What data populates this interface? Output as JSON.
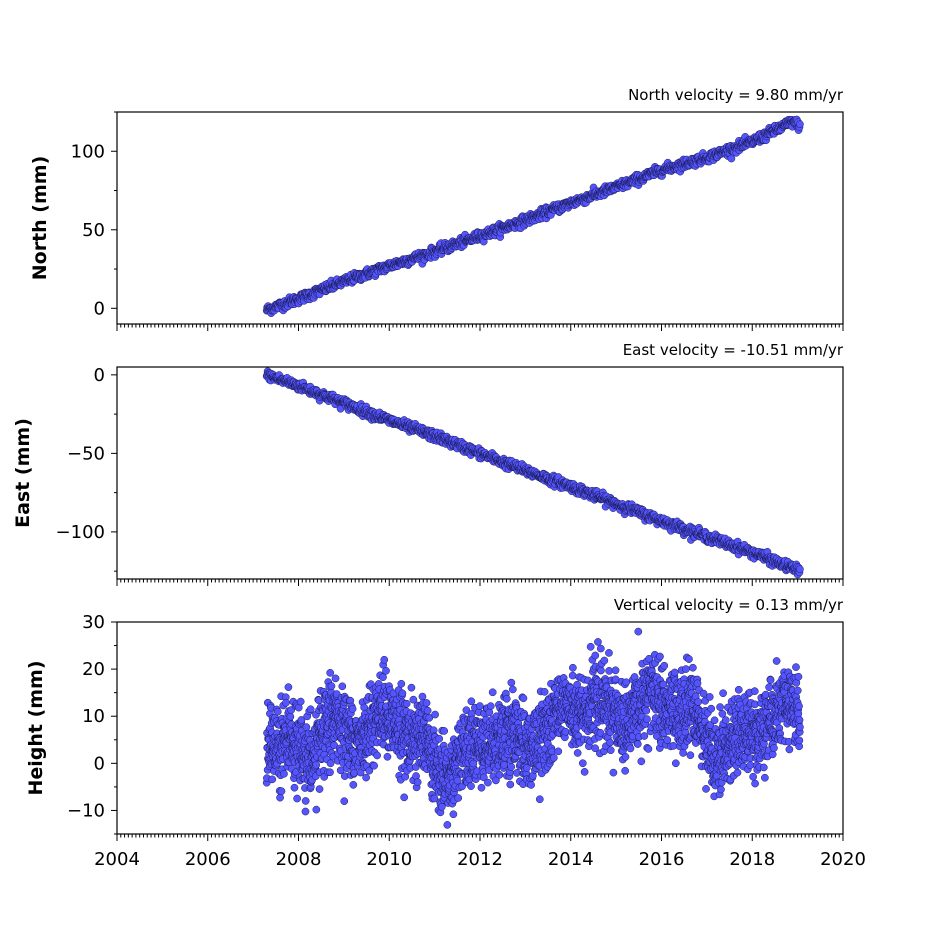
{
  "chart_data": [
    {
      "type": "scatter",
      "title": "North velocity = 9.80 mm/yr",
      "ylabel": "North (mm)",
      "xlim": [
        2004,
        2020
      ],
      "ylim": [
        -10,
        125
      ],
      "yticks": [
        0,
        50,
        100
      ],
      "trend": {
        "start_year": 2007.3,
        "end_year": 2019.05,
        "start_value": -1,
        "end_value": 116,
        "noise": 1.5
      },
      "series": [
        {
          "x": [
            2007.3,
            2008.0,
            2009.0,
            2010.0,
            2011.0,
            2012.0,
            2013.0,
            2014.0,
            2015.0,
            2016.0,
            2017.0,
            2018.0,
            2018.9,
            2019.05
          ],
          "values": [
            -1,
            6,
            17,
            27,
            36,
            46,
            56,
            67,
            77,
            88,
            96,
            106,
            119,
            116
          ]
        }
      ]
    },
    {
      "type": "scatter",
      "title": "East velocity = -10.51 mm/yr",
      "ylabel": "East (mm)",
      "xlim": [
        2004,
        2020
      ],
      "ylim": [
        -130,
        5
      ],
      "yticks": [
        0,
        -50,
        -100
      ],
      "trend": {
        "start_year": 2007.3,
        "end_year": 2019.05,
        "start_value": 0,
        "end_value": -125,
        "noise": 1.5
      },
      "series": [
        {
          "x": [
            2007.3,
            2008.0,
            2009.0,
            2010.0,
            2011.0,
            2012.0,
            2013.0,
            2014.0,
            2015.0,
            2016.0,
            2017.0,
            2018.0,
            2019.05
          ],
          "values": [
            0,
            -7,
            -18,
            -29,
            -39,
            -50,
            -61,
            -71,
            -82,
            -93,
            -103,
            -113,
            -125
          ]
        }
      ]
    },
    {
      "type": "scatter",
      "title": "Vertical velocity = 0.13 mm/yr",
      "ylabel": "Height (mm)",
      "xlim": [
        2004,
        2020
      ],
      "ylim": [
        -15,
        30
      ],
      "yticks": [
        30,
        20,
        10,
        0,
        -10
      ],
      "xticks": [
        2004,
        2006,
        2008,
        2010,
        2012,
        2014,
        2016,
        2018,
        2020
      ],
      "trend": {
        "start_year": 2007.3,
        "end_year": 2019.05,
        "noise": 4
      },
      "series": [
        {
          "x": [
            2007.3,
            2007.8,
            2008.3,
            2008.8,
            2009.3,
            2009.8,
            2010.3,
            2010.8,
            2011.2,
            2011.7,
            2012.2,
            2012.7,
            2013.2,
            2013.7,
            2014.2,
            2014.7,
            2015.2,
            2015.7,
            2016.2,
            2016.7,
            2017.2,
            2017.7,
            2018.2,
            2018.7,
            2019.05
          ],
          "values": [
            3,
            5,
            1,
            10,
            4,
            12,
            6,
            5,
            -5,
            3,
            5,
            6,
            3,
            12,
            10,
            14,
            7,
            16,
            10,
            12,
            1,
            7,
            6,
            12,
            10
          ]
        }
      ]
    }
  ]
}
